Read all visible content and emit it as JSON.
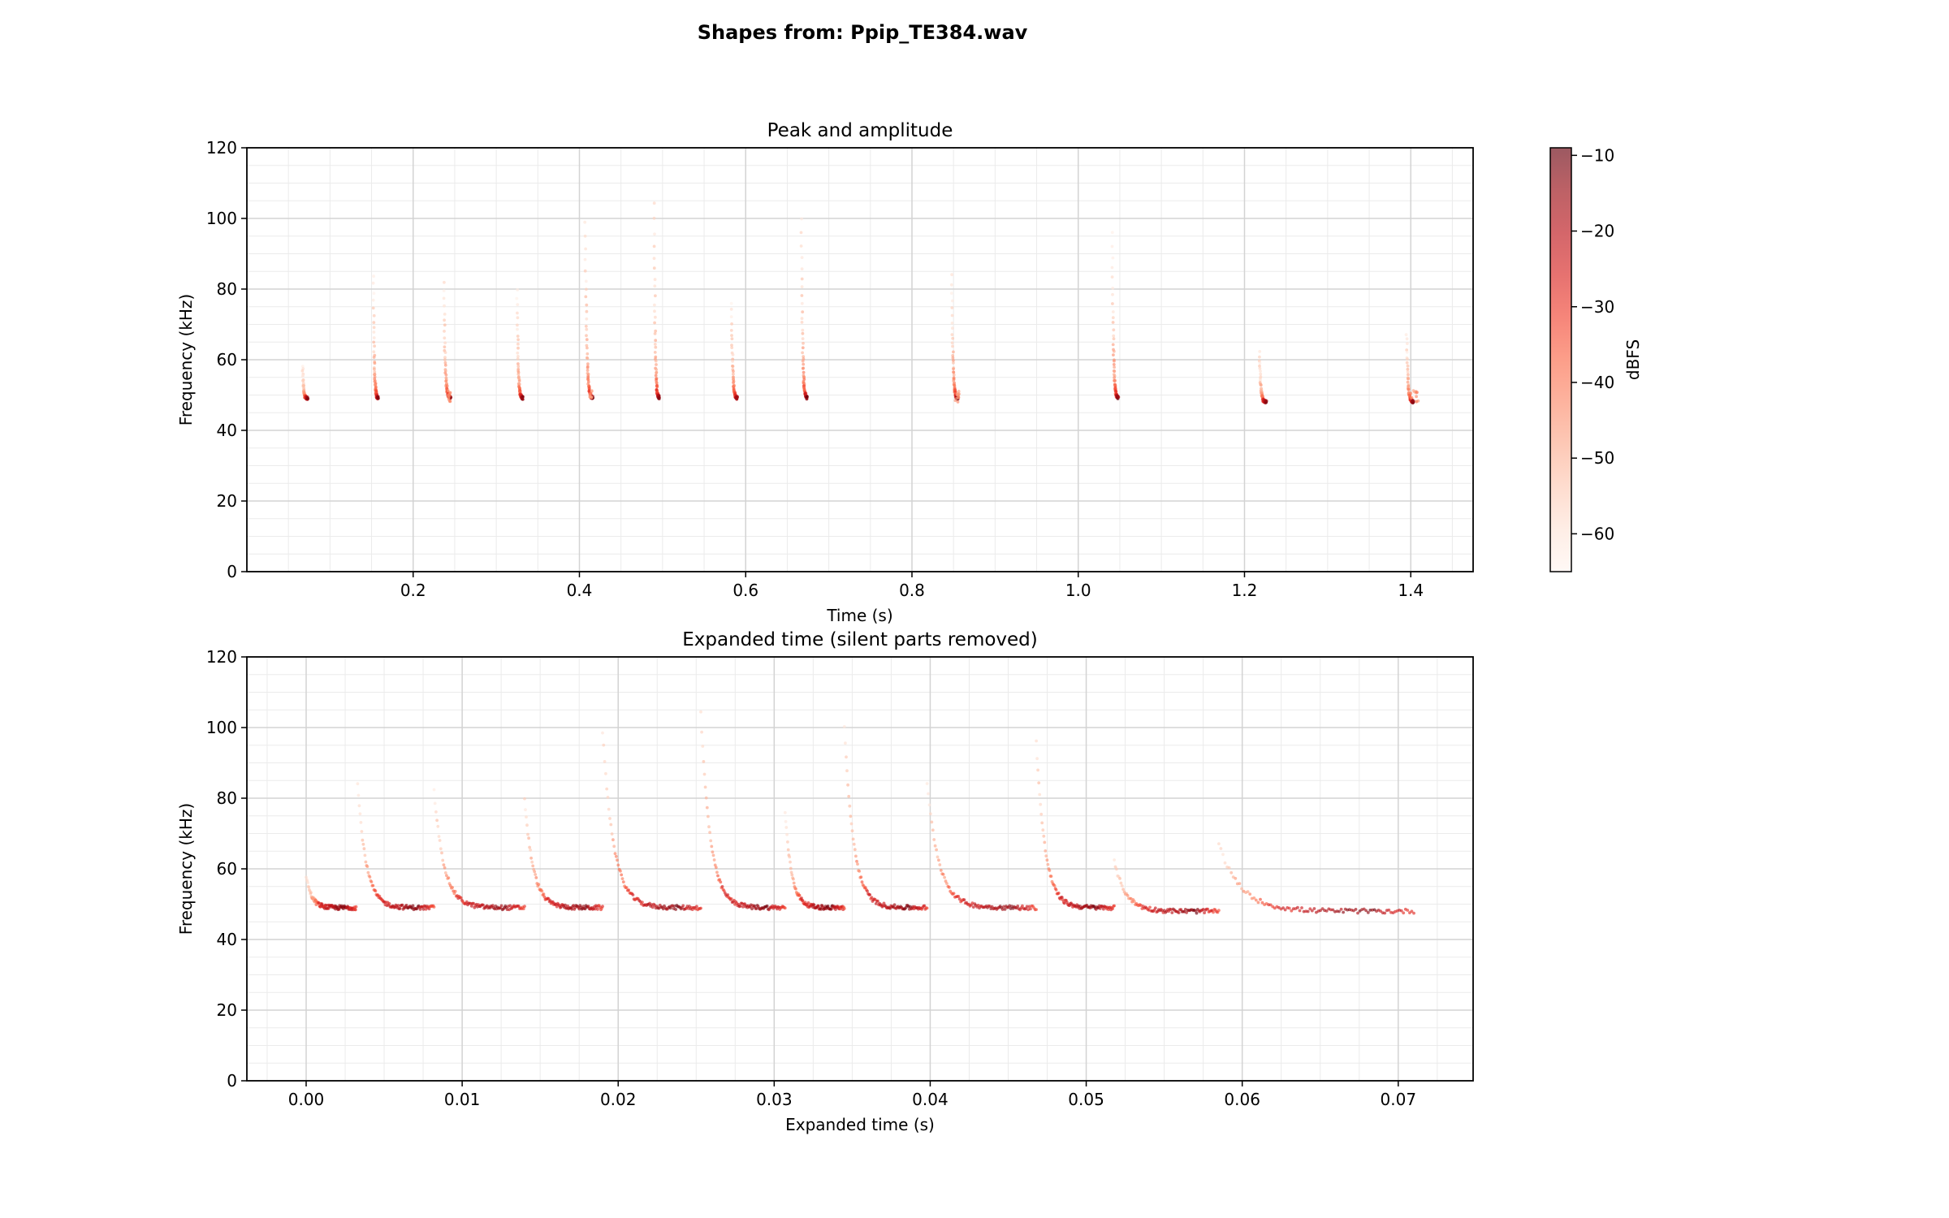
{
  "figure": {
    "suptitle": "Shapes from: Ppip_TE384.wav"
  },
  "colorbar": {
    "label": "dBFS",
    "range": [
      -65,
      -9
    ],
    "ticks": [
      -10,
      -20,
      -30,
      -40,
      -50,
      -60
    ],
    "tick_labels": [
      "−10",
      "−20",
      "−30",
      "−40",
      "−50",
      "−60"
    ],
    "colormap": "Reds",
    "alpha": 0.65
  },
  "chart_data": [
    {
      "type": "scatter",
      "title": "Peak and amplitude",
      "xlabel": "Time (s)",
      "ylabel": "Frequency (kHz)",
      "xlim": [
        0,
        1.475
      ],
      "ylim": [
        0,
        120
      ],
      "xticks": [
        0.2,
        0.4,
        0.6,
        0.8,
        1.0,
        1.2,
        1.4
      ],
      "xtick_labels": [
        "0.2",
        "0.4",
        "0.6",
        "0.8",
        "1.0",
        "1.2",
        "1.4"
      ],
      "yticks": [
        0,
        20,
        40,
        60,
        80,
        100,
        120
      ],
      "ytick_labels": [
        "0",
        "20",
        "40",
        "60",
        "80",
        "100",
        "120"
      ],
      "grid": true,
      "color_by": "dBFS",
      "pulses": [
        {
          "t": 0.067,
          "f_max": 58,
          "f_end": 49,
          "dur": 0.006,
          "tail": 0
        },
        {
          "t": 0.152,
          "f_max": 84,
          "f_end": 49,
          "dur": 0.006,
          "tail": 0
        },
        {
          "t": 0.237,
          "f_max": 82,
          "f_end": 49,
          "dur": 0.008,
          "tail": 0.003
        },
        {
          "t": 0.325,
          "f_max": 80,
          "f_end": 49,
          "dur": 0.007,
          "tail": 0
        },
        {
          "t": 0.407,
          "f_max": 99,
          "f_end": 49,
          "dur": 0.009,
          "tail": 0.003
        },
        {
          "t": 0.49,
          "f_max": 104,
          "f_end": 49,
          "dur": 0.006,
          "tail": 0
        },
        {
          "t": 0.583,
          "f_max": 76,
          "f_end": 49,
          "dur": 0.007,
          "tail": 0
        },
        {
          "t": 0.667,
          "f_max": 100,
          "f_end": 49,
          "dur": 0.007,
          "tail": 0
        },
        {
          "t": 0.848,
          "f_max": 84,
          "f_end": 49,
          "dur": 0.007,
          "tail": 0.005
        },
        {
          "t": 1.041,
          "f_max": 96,
          "f_end": 49,
          "dur": 0.007,
          "tail": 0
        },
        {
          "t": 1.218,
          "f_max": 62,
          "f_end": 48,
          "dur": 0.008,
          "tail": 0
        },
        {
          "t": 1.395,
          "f_max": 67,
          "f_end": 48,
          "dur": 0.008,
          "tail": 0.01
        }
      ]
    },
    {
      "type": "scatter",
      "title": "Expanded time (silent parts removed)",
      "xlabel": "Expanded time (s)",
      "ylabel": "Frequency (kHz)",
      "xlim": [
        -0.0038,
        0.0748
      ],
      "ylim": [
        0,
        120
      ],
      "xticks": [
        0.0,
        0.01,
        0.02,
        0.03,
        0.04,
        0.05,
        0.06,
        0.07
      ],
      "xtick_labels": [
        "0.00",
        "0.01",
        "0.02",
        "0.03",
        "0.04",
        "0.05",
        "0.06",
        "0.07"
      ],
      "yticks": [
        0,
        20,
        40,
        60,
        80,
        100,
        120
      ],
      "ytick_labels": [
        "0",
        "20",
        "40",
        "60",
        "80",
        "100",
        "120"
      ],
      "grid": true,
      "color_by": "dBFS",
      "segments": [
        {
          "x0": 0.0,
          "x1": 0.0032,
          "f_max": 58,
          "f_end": 49
        },
        {
          "x0": 0.0033,
          "x1": 0.0082,
          "f_max": 84,
          "f_end": 49
        },
        {
          "x0": 0.0082,
          "x1": 0.014,
          "f_max": 82,
          "f_end": 49
        },
        {
          "x0": 0.014,
          "x1": 0.019,
          "f_max": 80,
          "f_end": 49
        },
        {
          "x0": 0.019,
          "x1": 0.0253,
          "f_max": 99,
          "f_end": 49
        },
        {
          "x0": 0.0253,
          "x1": 0.0307,
          "f_max": 104,
          "f_end": 49
        },
        {
          "x0": 0.0307,
          "x1": 0.0345,
          "f_max": 76,
          "f_end": 49
        },
        {
          "x0": 0.0345,
          "x1": 0.0398,
          "f_max": 100,
          "f_end": 49
        },
        {
          "x0": 0.0398,
          "x1": 0.0468,
          "f_max": 84,
          "f_end": 49
        },
        {
          "x0": 0.0468,
          "x1": 0.0518,
          "f_max": 96,
          "f_end": 49
        },
        {
          "x0": 0.0518,
          "x1": 0.0585,
          "f_max": 62,
          "f_end": 48
        },
        {
          "x0": 0.0585,
          "x1": 0.071,
          "f_max": 67,
          "f_end": 48
        }
      ]
    }
  ]
}
